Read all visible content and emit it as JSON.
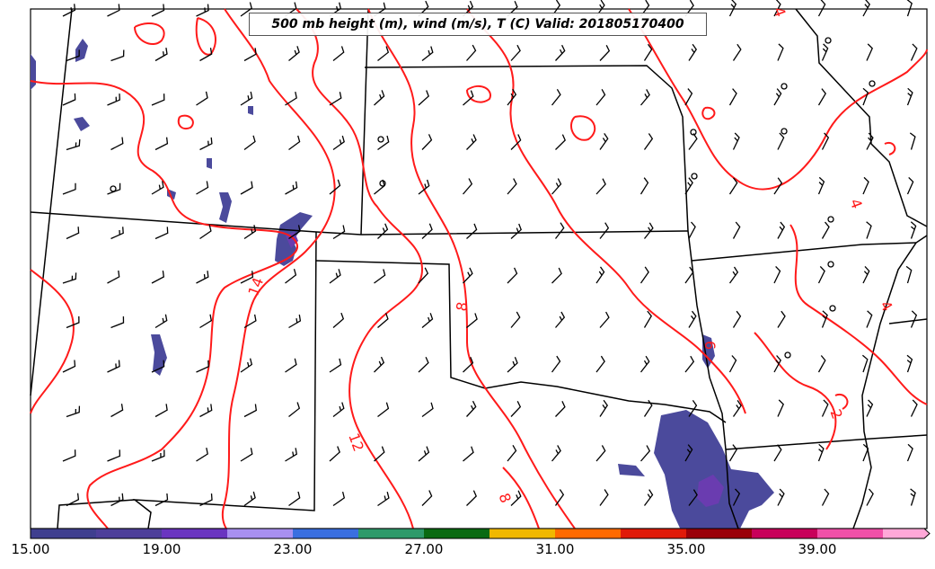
{
  "title": "500 mb height (m), wind (m/s), T (C) Valid: 201805170400",
  "colors": {
    "state_lines": "#000000",
    "temperature_contours": "#ff1a1a",
    "precip_blue": "#4b4a9c",
    "precip_purple": "#6a3cb0"
  },
  "contour_labels": [
    "14",
    "12",
    "8",
    "8",
    "6",
    "4",
    "4",
    "2",
    "4"
  ],
  "colorbar": {
    "labels": [
      "15.00",
      "19.00",
      "23.00",
      "27.00",
      "31.00",
      "35.00",
      "39.00"
    ],
    "colors": [
      "#3f3f8f",
      "#4e3f9a",
      "#6a35c0",
      "#a890f0",
      "#3a6fe0",
      "#2e9a6a",
      "#0a6a12",
      "#f0b800",
      "#ff6a00",
      "#e01a08",
      "#9a0008",
      "#c8005a",
      "#f050a8",
      "#ffa8d8"
    ]
  }
}
